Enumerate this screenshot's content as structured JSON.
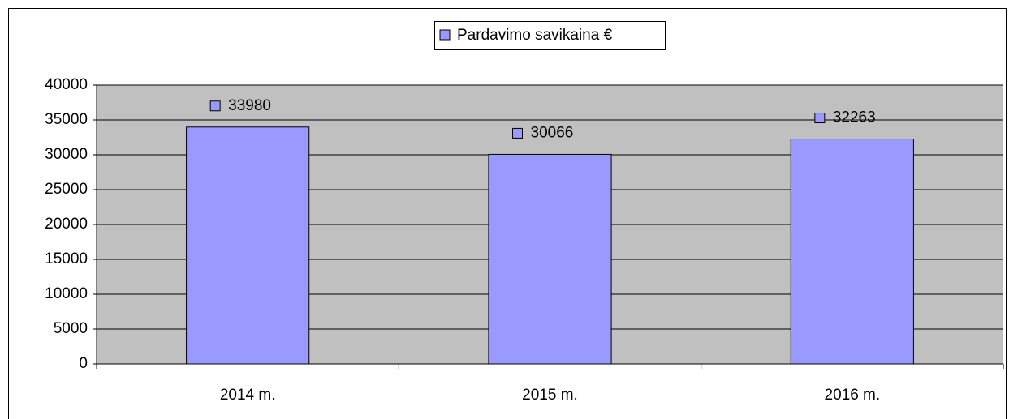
{
  "chart_data": {
    "type": "bar",
    "categories": [
      "2014 m.",
      "2015 m.",
      "2016 m."
    ],
    "series": [
      {
        "name": "Pardavimo savikaina €",
        "color": "#9999ff",
        "values": [
          33980,
          30066,
          32263
        ]
      }
    ],
    "ylim": [
      0,
      40000
    ],
    "yticks": [
      0,
      5000,
      10000,
      15000,
      20000,
      25000,
      30000,
      35000,
      40000
    ],
    "grid": true,
    "legend": "top",
    "plot_background": "#c0c0c0"
  }
}
